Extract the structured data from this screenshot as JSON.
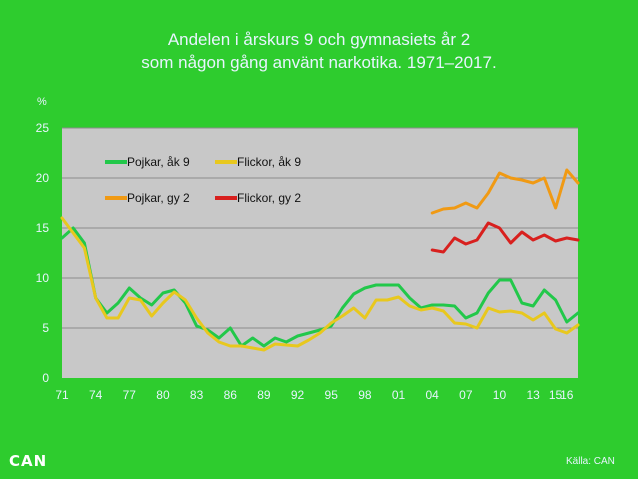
{
  "chart_data": {
    "type": "line",
    "title": [
      "Andelen i årskurs 9 och gymnasiets år 2",
      "som någon gång använt narkotika. 1971–2017."
    ],
    "ylabel": "%",
    "xlabel": "",
    "ylim": [
      0,
      25
    ],
    "yticks": [
      "0",
      "5",
      "10",
      "15",
      "20",
      "25"
    ],
    "xlim": [
      1971,
      2017
    ],
    "xticks": [
      {
        "x": 1971,
        "label": "71"
      },
      {
        "x": 1974,
        "label": "74"
      },
      {
        "x": 1977,
        "label": "77"
      },
      {
        "x": 1980,
        "label": "80"
      },
      {
        "x": 1983,
        "label": "83"
      },
      {
        "x": 1986,
        "label": "86"
      },
      {
        "x": 1989,
        "label": "89"
      },
      {
        "x": 1992,
        "label": "92"
      },
      {
        "x": 1995,
        "label": "95"
      },
      {
        "x": 1998,
        "label": "98"
      },
      {
        "x": 2001,
        "label": "01"
      },
      {
        "x": 2004,
        "label": "04"
      },
      {
        "x": 2007,
        "label": "07"
      },
      {
        "x": 2010,
        "label": "10"
      },
      {
        "x": 2013,
        "label": "13"
      },
      {
        "x": 2015,
        "label": "15"
      },
      {
        "x": 2016,
        "label": "16"
      }
    ],
    "grid": true,
    "legend_position": "top-left",
    "series": [
      {
        "name": "Pojkar, åk 9",
        "color": "#22c84a",
        "x": [
          1971,
          1972,
          1973,
          1974,
          1975,
          1976,
          1977,
          1978,
          1979,
          1980,
          1981,
          1982,
          1983,
          1984,
          1985,
          1986,
          1987,
          1988,
          1989,
          1990,
          1991,
          1992,
          1993,
          1994,
          1995,
          1996,
          1997,
          1998,
          1999,
          2000,
          2001,
          2002,
          2003,
          2004,
          2005,
          2006,
          2007,
          2008,
          2009,
          2010,
          2011,
          2012,
          2013,
          2014,
          2015,
          2016,
          2017
        ],
        "y": [
          14,
          15,
          13.5,
          8,
          6.5,
          7.5,
          9,
          8,
          7.3,
          8.5,
          8.8,
          7.5,
          5.2,
          4.8,
          4,
          5,
          3.2,
          4,
          3.2,
          4,
          3.6,
          4.2,
          4.5,
          4.8,
          5.2,
          7,
          8.4,
          9,
          9.3,
          9.3,
          9.3,
          8,
          7,
          7.3,
          7.3,
          7.2,
          6,
          6.5,
          8.5,
          9.8,
          9.8,
          7.5,
          7.2,
          8.8,
          7.8,
          5.6,
          6.5
        ]
      },
      {
        "name": "Flickor, åk 9",
        "color": "#e8c81e",
        "x": [
          1971,
          1972,
          1973,
          1974,
          1975,
          1976,
          1977,
          1978,
          1979,
          1980,
          1981,
          1982,
          1983,
          1984,
          1985,
          1986,
          1987,
          1988,
          1989,
          1990,
          1991,
          1992,
          1993,
          1994,
          1995,
          1996,
          1997,
          1998,
          1999,
          2000,
          2001,
          2002,
          2003,
          2004,
          2005,
          2006,
          2007,
          2008,
          2009,
          2010,
          2011,
          2012,
          2013,
          2014,
          2015,
          2016,
          2017
        ],
        "y": [
          16,
          14.5,
          13,
          8,
          6,
          6,
          8,
          7.8,
          6.2,
          7.5,
          8.6,
          7.8,
          6,
          4.5,
          3.6,
          3.2,
          3.2,
          3,
          2.8,
          3.4,
          3.3,
          3.2,
          3.8,
          4.5,
          5.5,
          6.2,
          7,
          6,
          7.8,
          7.8,
          8.1,
          7.2,
          6.8,
          7,
          6.7,
          5.5,
          5.4,
          5,
          7,
          6.6,
          6.7,
          6.5,
          5.8,
          6.5,
          4.9,
          4.5,
          5.3
        ]
      },
      {
        "name": "Pojkar, gy 2",
        "color": "#f09a14",
        "x": [
          2004,
          2005,
          2006,
          2007,
          2008,
          2009,
          2010,
          2011,
          2012,
          2013,
          2014,
          2015,
          2016,
          2017
        ],
        "y": [
          16.5,
          16.9,
          17,
          17.5,
          17,
          18.5,
          20.5,
          20,
          19.8,
          19.5,
          20,
          17,
          20.8,
          19.5
        ]
      },
      {
        "name": "Flickor, gy 2",
        "color": "#d8201e",
        "x": [
          2004,
          2005,
          2006,
          2007,
          2008,
          2009,
          2010,
          2011,
          2012,
          2013,
          2014,
          2015,
          2016,
          2017
        ],
        "y": [
          12.8,
          12.6,
          14,
          13.4,
          13.8,
          15.5,
          15,
          13.5,
          14.6,
          13.8,
          14.3,
          13.7,
          14,
          13.8
        ]
      }
    ]
  },
  "footer": {
    "logo_text": "CAN",
    "source": "Källa: CAN"
  },
  "colors": {
    "background": "#2ecc2e",
    "plot_area": "#c8c8c8",
    "grid": "#8c8c8c",
    "tick_text": "#e8f4ff"
  }
}
